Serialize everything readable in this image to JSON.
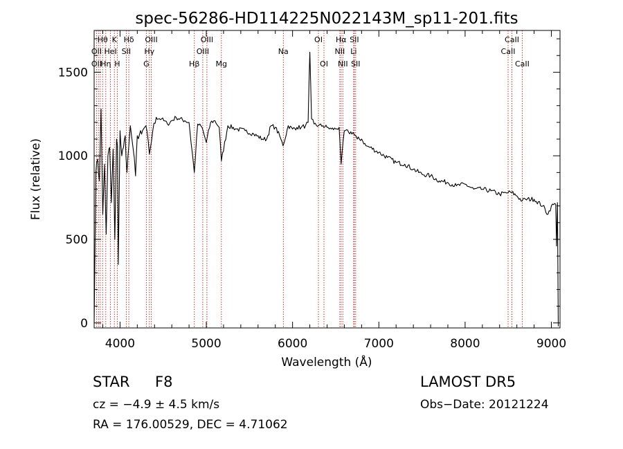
{
  "chart_data": {
    "type": "line",
    "title": "spec-56286-HD114225N022143M_sp11-201.fits",
    "xlabel": "Wavelength (Å)",
    "ylabel": "Flux (relative)",
    "xlim": [
      3700,
      9100
    ],
    "ylim": [
      -30,
      1750
    ],
    "x_ticks": [
      4000,
      5000,
      6000,
      7000,
      8000,
      9000
    ],
    "y_ticks": [
      0,
      500,
      1000,
      1500
    ],
    "grid": false,
    "series": [
      {
        "x": [
          3700,
          3720,
          3740,
          3760,
          3780,
          3800,
          3820,
          3840,
          3860,
          3880,
          3900,
          3920,
          3940,
          3960,
          3970,
          3980,
          4000,
          4020,
          4040,
          4060,
          4080,
          4102,
          4120,
          4150,
          4180,
          4200,
          4250,
          4300,
          4340,
          4380,
          4420,
          4480,
          4550,
          4650,
          4750,
          4800,
          4861,
          4900,
          4950,
          5000,
          5050,
          5100,
          5150,
          5175,
          5250,
          5350,
          5450,
          5550,
          5650,
          5700,
          5750,
          5800,
          5850,
          5890,
          5950,
          6000,
          6050,
          6100,
          6150,
          6180,
          6200,
          6220,
          6250,
          6300,
          6350,
          6400,
          6450,
          6500,
          6540,
          6563,
          6600,
          6650,
          6700,
          6750,
          6800,
          6850,
          6900,
          7000,
          7100,
          7200,
          7300,
          7400,
          7500,
          7600,
          7700,
          7800,
          7900,
          8000,
          8100,
          8200,
          8300,
          8400,
          8498,
          8542,
          8600,
          8662,
          8700,
          8800,
          8900,
          8960,
          9000,
          9050,
          9060,
          9070,
          9080
        ],
        "y": [
          0,
          900,
          980,
          850,
          1280,
          650,
          950,
          530,
          1000,
          1050,
          720,
          1040,
          500,
          1100,
          1060,
          350,
          1150,
          1000,
          1050,
          1120,
          900,
          1060,
          1180,
          1050,
          880,
          1120,
          1130,
          1180,
          1010,
          1150,
          1230,
          1220,
          1190,
          1230,
          1210,
          1200,
          900,
          1190,
          1170,
          1080,
          1200,
          1210,
          1170,
          970,
          1180,
          1160,
          1150,
          1130,
          1100,
          1100,
          1180,
          1170,
          1120,
          1060,
          1180,
          1160,
          1170,
          1170,
          1180,
          1200,
          1620,
          1220,
          1190,
          1180,
          1180,
          1170,
          1160,
          1160,
          1170,
          950,
          1150,
          1140,
          1140,
          1100,
          1100,
          1060,
          1050,
          1020,
          990,
          960,
          950,
          920,
          890,
          880,
          850,
          840,
          820,
          830,
          800,
          800,
          790,
          770,
          780,
          780,
          760,
          730,
          740,
          740,
          700,
          650,
          700,
          710,
          460,
          720,
          -20
        ]
      }
    ],
    "line_marks": [
      {
        "label": "Hθ",
        "wl": 3798,
        "row": 1
      },
      {
        "label": "OII",
        "wl": 3727,
        "row": 2
      },
      {
        "label": "OII",
        "wl": 3727,
        "row": 3
      },
      {
        "label": "Hη",
        "wl": 3835,
        "row": 3
      },
      {
        "label": "K",
        "wl": 3934,
        "row": 1
      },
      {
        "label": "HeI",
        "wl": 3889,
        "row": 2
      },
      {
        "label": "H",
        "wl": 3968,
        "row": 3
      },
      {
        "label": "Hδ",
        "wl": 4102,
        "row": 1
      },
      {
        "label": "SII",
        "wl": 4072,
        "row": 2
      },
      {
        "label": "OIII",
        "wl": 4363,
        "row": 1
      },
      {
        "label": "Hγ",
        "wl": 4340,
        "row": 2
      },
      {
        "label": "G",
        "wl": 4305,
        "row": 3
      },
      {
        "label": "Hβ",
        "wl": 4861,
        "row": 3
      },
      {
        "label": "OIII",
        "wl": 5007,
        "row": 1
      },
      {
        "label": "OIII",
        "wl": 4959,
        "row": 2
      },
      {
        "label": "Mg",
        "wl": 5175,
        "row": 3
      },
      {
        "label": "Na",
        "wl": 5893,
        "row": 2
      },
      {
        "label": "OI",
        "wl": 6300,
        "row": 1
      },
      {
        "label": "OI",
        "wl": 6364,
        "row": 3
      },
      {
        "label": "Hα",
        "wl": 6563,
        "row": 1
      },
      {
        "label": "NII",
        "wl": 6548,
        "row": 2
      },
      {
        "label": "NII",
        "wl": 6583,
        "row": 3
      },
      {
        "label": "SII",
        "wl": 6716,
        "row": 1
      },
      {
        "label": "Li",
        "wl": 6708,
        "row": 2
      },
      {
        "label": "SII",
        "wl": 6731,
        "row": 3
      },
      {
        "label": "CaII",
        "wl": 8542,
        "row": 1
      },
      {
        "label": "CaII",
        "wl": 8498,
        "row": 2
      },
      {
        "label": "CaII",
        "wl": 8662,
        "row": 3
      }
    ],
    "extra_line_wl": [
      3750,
      3771
    ]
  },
  "info": {
    "object_class": "STAR",
    "subclass": "F8",
    "survey": "LAMOST DR5",
    "cz_text": "cz = −4.9 ± 4.5 km/s",
    "obs_date": "Obs−Date: 20121224",
    "coords": "RA = 176.00529, DEC =   4.71062"
  },
  "colors": {
    "spectrum": "#000000",
    "line_marks": "#b22222",
    "axes": "#000000"
  }
}
